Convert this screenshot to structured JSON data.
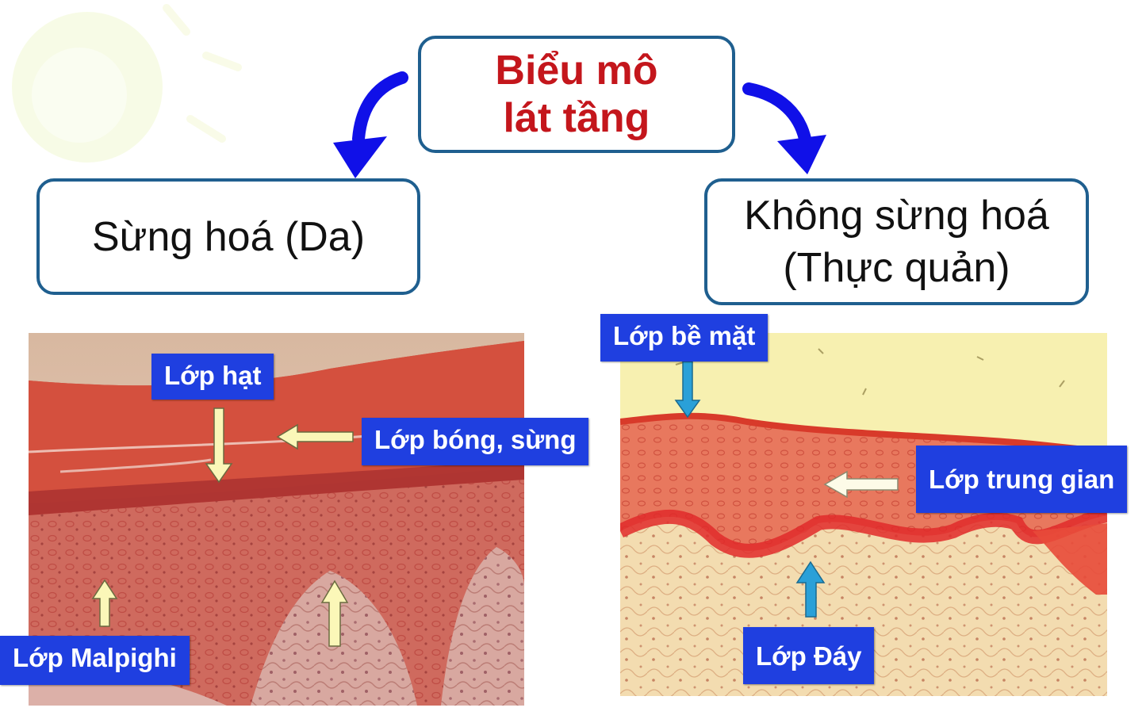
{
  "root": {
    "line1": "Biểu mô",
    "line2": "lát tầng"
  },
  "left_branch": {
    "text": "Sừng hoá (Da)"
  },
  "right_branch": {
    "line1": "Không sừng hoá",
    "line2": "(Thực quản)"
  },
  "skin_labels": {
    "hat": "Lớp hạt",
    "bong_sung": "Lớp bóng, sừng",
    "malpighi": "Lớp Malpighi"
  },
  "esophagus_labels": {
    "be_mat": "Lớp bề mặt",
    "trung_gian": "Lớp trung gian",
    "day": "Lớp Đáy"
  },
  "colors": {
    "title_red": "#c4161c",
    "box_border": "#1f5f8f",
    "connector_blue": "#1010e8",
    "label_blue": "#1f3fe0",
    "arrow_yellow": "#fbf7b8",
    "arrow_cyan": "#2aa0d8"
  }
}
